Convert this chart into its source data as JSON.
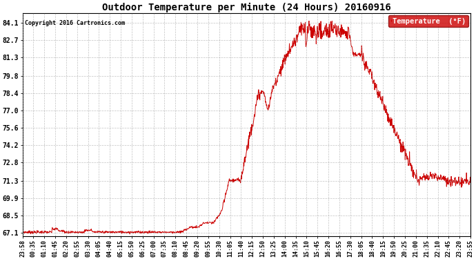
{
  "title": "Outdoor Temperature per Minute (24 Hours) 20160916",
  "copyright_text": "Copyright 2016 Cartronics.com",
  "legend_label": "Temperature  (°F)",
  "line_color": "#cc0000",
  "background_color": "#ffffff",
  "grid_color": "#999999",
  "yticks": [
    67.1,
    68.5,
    69.9,
    71.3,
    72.8,
    74.2,
    75.6,
    77.0,
    78.4,
    79.8,
    81.3,
    82.7,
    84.1
  ],
  "ylim": [
    66.8,
    84.9
  ],
  "xtick_labels": [
    "23:58",
    "00:35",
    "01:10",
    "01:45",
    "02:20",
    "02:55",
    "03:30",
    "04:05",
    "04:40",
    "05:15",
    "05:50",
    "06:25",
    "07:00",
    "07:35",
    "08:10",
    "08:45",
    "09:20",
    "09:55",
    "10:30",
    "11:05",
    "11:40",
    "12:15",
    "12:50",
    "13:25",
    "14:00",
    "14:35",
    "15:10",
    "15:45",
    "16:20",
    "16:55",
    "17:30",
    "18:05",
    "18:40",
    "19:15",
    "19:50",
    "20:25",
    "21:00",
    "21:35",
    "22:10",
    "22:45",
    "23:20",
    "23:55"
  ],
  "num_points": 1441
}
